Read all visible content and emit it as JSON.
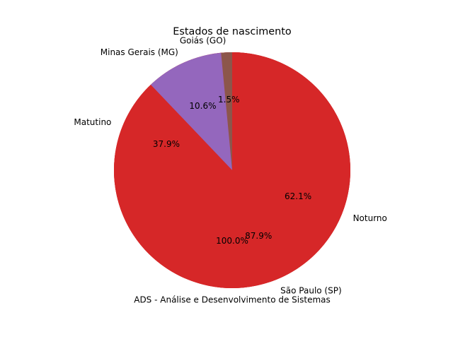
{
  "chart_data": {
    "type": "pie",
    "title": "Estados de nascimento",
    "layers": [
      {
        "name": "",
        "slices": [
          {
            "label": "ADS - Análise e Desenvolvimento de Sistemas",
            "value": 100.0,
            "pct_label": "100.0%",
            "color": "#d62728"
          }
        ]
      },
      {
        "name": "",
        "slices": [
          {
            "label": "Matutino",
            "value": 37.9,
            "pct_label": "37.9%",
            "color": "#d62728"
          },
          {
            "label": "Noturno",
            "value": 62.1,
            "pct_label": "62.1%",
            "color": "#d62728"
          }
        ]
      },
      {
        "name": "",
        "slices": [
          {
            "label": "Goiás (GO)",
            "value": 1.5,
            "pct_label": "1.5%",
            "color": "#8c564b"
          },
          {
            "label": "Minas Gerais (MG)",
            "value": 10.6,
            "pct_label": "10.6%",
            "color": "#9467bd"
          },
          {
            "label": "São Paulo (SP)",
            "value": 87.9,
            "pct_label": "87.9%",
            "color": "#d62728"
          }
        ]
      }
    ],
    "start_angle_deg": 90,
    "direction": "counterclockwise"
  }
}
